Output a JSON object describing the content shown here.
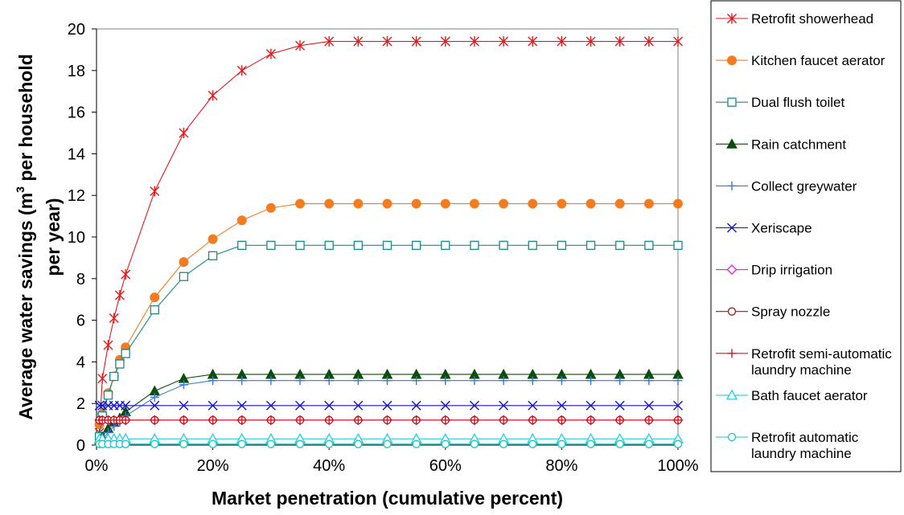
{
  "chart_data": {
    "type": "line",
    "title": "",
    "xlabel": "Market penetration (cumulative percent)",
    "ylabel_line1": "Average water savings (m",
    "ylabel_sup": "3",
    "ylabel_line1_end": " per household",
    "ylabel_line2": "per year)",
    "xlim": [
      0,
      100
    ],
    "ylim": [
      0,
      20
    ],
    "x_ticks": [
      0,
      20,
      40,
      60,
      80,
      100
    ],
    "x_tick_labels": [
      "0%",
      "20%",
      "40%",
      "60%",
      "80%",
      "100%"
    ],
    "y_ticks": [
      0,
      2,
      4,
      6,
      8,
      10,
      12,
      14,
      16,
      18,
      20
    ],
    "y_tick_labels": [
      "0",
      "2",
      "4",
      "6",
      "8",
      "10",
      "12",
      "14",
      "16",
      "18",
      "20"
    ],
    "grid": false,
    "legend_position": "right",
    "x": [
      0.5,
      1,
      2,
      3,
      4,
      5,
      10,
      15,
      20,
      25,
      30,
      35,
      40,
      45,
      50,
      55,
      60,
      65,
      70,
      75,
      80,
      85,
      90,
      95,
      100
    ],
    "series": [
      {
        "name": "Retrofit showerhead",
        "color": "#e41a1c",
        "marker": "asterisk",
        "values": [
          0.6,
          3.2,
          4.8,
          6.1,
          7.2,
          8.2,
          12.2,
          15.0,
          16.8,
          18.0,
          18.8,
          19.2,
          19.4,
          19.4,
          19.4,
          19.4,
          19.4,
          19.4,
          19.4,
          19.4,
          19.4,
          19.4,
          19.4,
          19.4,
          19.4
        ]
      },
      {
        "name": "Kitchen faucet aerator",
        "color": "#f47c20",
        "marker": "filled-circle",
        "values": [
          1.0,
          1.5,
          2.5,
          3.3,
          4.1,
          4.7,
          7.1,
          8.8,
          9.9,
          10.8,
          11.4,
          11.6,
          11.6,
          11.6,
          11.6,
          11.6,
          11.6,
          11.6,
          11.6,
          11.6,
          11.6,
          11.6,
          11.6,
          11.6,
          11.6
        ]
      },
      {
        "name": "Dual flush toilet",
        "color": "#1a8a8a",
        "marker": "open-square",
        "values": [
          0.4,
          1.4,
          2.4,
          3.3,
          3.9,
          4.4,
          6.5,
          8.1,
          9.1,
          9.6,
          9.6,
          9.6,
          9.6,
          9.6,
          9.6,
          9.6,
          9.6,
          9.6,
          9.6,
          9.6,
          9.6,
          9.6,
          9.6,
          9.6,
          9.6
        ]
      },
      {
        "name": "Rain catchment",
        "color": "#0b4d0b",
        "marker": "filled-triangle",
        "values": [
          0.2,
          0.4,
          0.8,
          1.1,
          1.3,
          1.6,
          2.6,
          3.2,
          3.4,
          3.4,
          3.4,
          3.4,
          3.4,
          3.4,
          3.4,
          3.4,
          3.4,
          3.4,
          3.4,
          3.4,
          3.4,
          3.4,
          3.4,
          3.4,
          3.4
        ]
      },
      {
        "name": "Collect greywater",
        "color": "#3b78d8",
        "marker": "plus",
        "values": [
          0.1,
          0.3,
          0.6,
          0.9,
          1.1,
          1.4,
          2.3,
          2.9,
          3.1,
          3.1,
          3.1,
          3.1,
          3.1,
          3.1,
          3.1,
          3.1,
          3.1,
          3.1,
          3.1,
          3.1,
          3.1,
          3.1,
          3.1,
          3.1,
          3.1
        ]
      },
      {
        "name": "Xeriscape",
        "color": "#1414c8",
        "marker": "x",
        "values": [
          1.9,
          1.9,
          1.9,
          1.9,
          1.9,
          1.9,
          1.9,
          1.9,
          1.9,
          1.9,
          1.9,
          1.9,
          1.9,
          1.9,
          1.9,
          1.9,
          1.9,
          1.9,
          1.9,
          1.9,
          1.9,
          1.9,
          1.9,
          1.9,
          1.9
        ]
      },
      {
        "name": "Drip irrigation",
        "color": "#e020e0",
        "marker": "open-diamond",
        "values": [
          1.2,
          1.2,
          1.2,
          1.2,
          1.2,
          1.2,
          1.2,
          1.2,
          1.2,
          1.2,
          1.2,
          1.2,
          1.2,
          1.2,
          1.2,
          1.2,
          1.2,
          1.2,
          1.2,
          1.2,
          1.2,
          1.2,
          1.2,
          1.2,
          1.2
        ]
      },
      {
        "name": "Spray nozzle",
        "color": "#9a1a1a",
        "marker": "open-circle",
        "values": [
          1.2,
          1.2,
          1.2,
          1.2,
          1.2,
          1.2,
          1.2,
          1.2,
          1.2,
          1.2,
          1.2,
          1.2,
          1.2,
          1.2,
          1.2,
          1.2,
          1.2,
          1.2,
          1.2,
          1.2,
          1.2,
          1.2,
          1.2,
          1.2,
          1.2
        ]
      },
      {
        "name": "Retrofit semi-automatic laundry machine",
        "legend_lines": [
          "Retrofit semi-automatic",
          "laundry machine"
        ],
        "color": "#e0141e",
        "marker": "plus",
        "values": [
          1.2,
          1.2,
          1.2,
          1.2,
          1.2,
          1.2,
          1.2,
          1.2,
          1.2,
          1.2,
          1.2,
          1.2,
          1.2,
          1.2,
          1.2,
          1.2,
          1.2,
          1.2,
          1.2,
          1.2,
          1.2,
          1.2,
          1.2,
          1.2,
          1.2
        ]
      },
      {
        "name": "Bath faucet aerator",
        "color": "#20d0e0",
        "marker": "open-triangle",
        "values": [
          0.3,
          0.3,
          0.3,
          0.3,
          0.3,
          0.3,
          0.3,
          0.3,
          0.3,
          0.3,
          0.3,
          0.3,
          0.3,
          0.3,
          0.3,
          0.3,
          0.3,
          0.3,
          0.3,
          0.3,
          0.3,
          0.3,
          0.3,
          0.3,
          0.3
        ]
      },
      {
        "name": "Retrofit automatic laundry machine",
        "legend_lines": [
          "Retrofit automatic",
          "laundry machine"
        ],
        "color": "#20c0c0",
        "marker": "open-circle",
        "values": [
          0.05,
          0.05,
          0.05,
          0.05,
          0.05,
          0.05,
          0.05,
          0.05,
          0.05,
          0.05,
          0.05,
          0.05,
          0.05,
          0.05,
          0.05,
          0.05,
          0.05,
          0.05,
          0.05,
          0.05,
          0.05,
          0.05,
          0.05,
          0.05,
          0.05
        ]
      }
    ]
  }
}
